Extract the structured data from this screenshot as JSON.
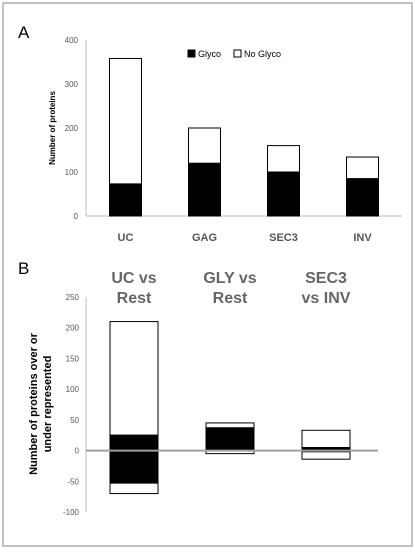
{
  "chart_data": [
    {
      "panel_label": "A",
      "type": "bar",
      "stacked": true,
      "categories": [
        "UC",
        "GAG",
        "SEC3",
        "INV"
      ],
      "series": [
        {
          "name": "Glyco",
          "values": [
            73,
            120,
            100,
            85
          ],
          "color": "#000000"
        },
        {
          "name": "No Glyco",
          "values": [
            285,
            80,
            60,
            49
          ],
          "color": "#ffffff"
        }
      ],
      "ylabel": "Number of proteins",
      "ylim": [
        0,
        400
      ],
      "yticks": [
        0,
        100,
        200,
        300,
        400
      ],
      "legend_position": "top-right",
      "grid": false
    },
    {
      "panel_label": "B",
      "type": "bar",
      "stacked": true,
      "column_titles": [
        [
          "UC vs",
          "Rest"
        ],
        [
          "GLY vs",
          "Rest"
        ],
        [
          "SEC3",
          "vs INV"
        ]
      ],
      "column_values": [
        {
          "positive": {
            "black": 25,
            "white": 185
          },
          "negative": {
            "black": -53,
            "white": -17
          }
        },
        {
          "positive": {
            "black": 37,
            "white": 8
          },
          "negative": {
            "black": 0,
            "white": -5
          }
        },
        {
          "positive": {
            "black": 5,
            "white": 28
          },
          "negative": {
            "black": -2,
            "white": -12
          }
        }
      ],
      "ylabel_lines": [
        "Number of proteins over or",
        "under represented"
      ],
      "ylim": [
        -100,
        250
      ],
      "yticks": [
        -100,
        -50,
        0,
        50,
        100,
        150,
        200,
        250
      ],
      "grid": false
    }
  ]
}
